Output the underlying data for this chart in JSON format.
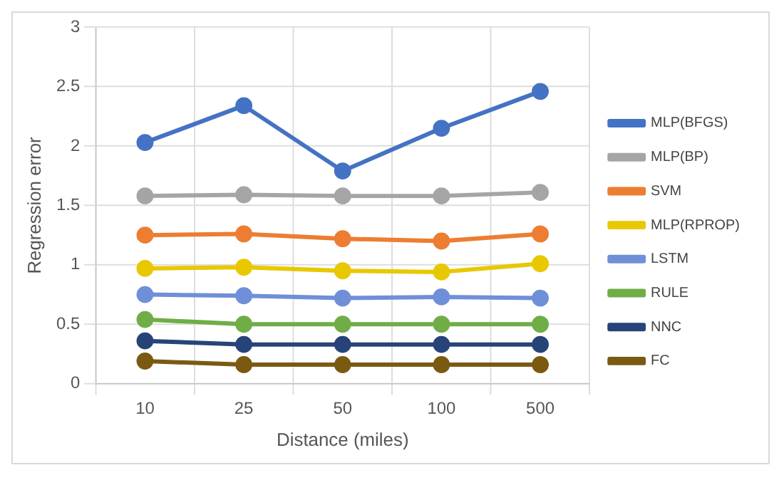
{
  "chart_data": {
    "type": "line",
    "xlabel": "Distance (miles)",
    "ylabel": "Regression error",
    "categories": [
      "10",
      "25",
      "50",
      "100",
      "500"
    ],
    "series": [
      {
        "name": "MLP(BFGS)",
        "color": "#4472c4",
        "values": [
          2.03,
          2.34,
          1.79,
          2.15,
          2.46
        ]
      },
      {
        "name": "MLP(BP)",
        "color": "#a5a5a5",
        "values": [
          1.58,
          1.59,
          1.58,
          1.58,
          1.61
        ]
      },
      {
        "name": "SVM",
        "color": "#ed7d31",
        "values": [
          1.25,
          1.26,
          1.22,
          1.2,
          1.26
        ]
      },
      {
        "name": "MLP(RPROP)",
        "color": "#e8c800",
        "values": [
          0.97,
          0.98,
          0.95,
          0.94,
          1.01
        ]
      },
      {
        "name": "LSTM",
        "color": "#6f8fd8",
        "values": [
          0.75,
          0.74,
          0.72,
          0.73,
          0.72
        ]
      },
      {
        "name": "RULE",
        "color": "#70ad47",
        "values": [
          0.54,
          0.5,
          0.5,
          0.5,
          0.5
        ]
      },
      {
        "name": "NNC",
        "color": "#264478",
        "values": [
          0.36,
          0.33,
          0.33,
          0.33,
          0.33
        ]
      },
      {
        "name": "FC",
        "color": "#7a5a12",
        "values": [
          0.19,
          0.16,
          0.16,
          0.16,
          0.16
        ]
      }
    ],
    "ylim": [
      0,
      3
    ],
    "yticks": [
      0,
      0.5,
      1,
      1.5,
      2,
      2.5,
      3
    ],
    "grid": true,
    "legend": "right",
    "marker": "circle",
    "line_style": "solid"
  }
}
